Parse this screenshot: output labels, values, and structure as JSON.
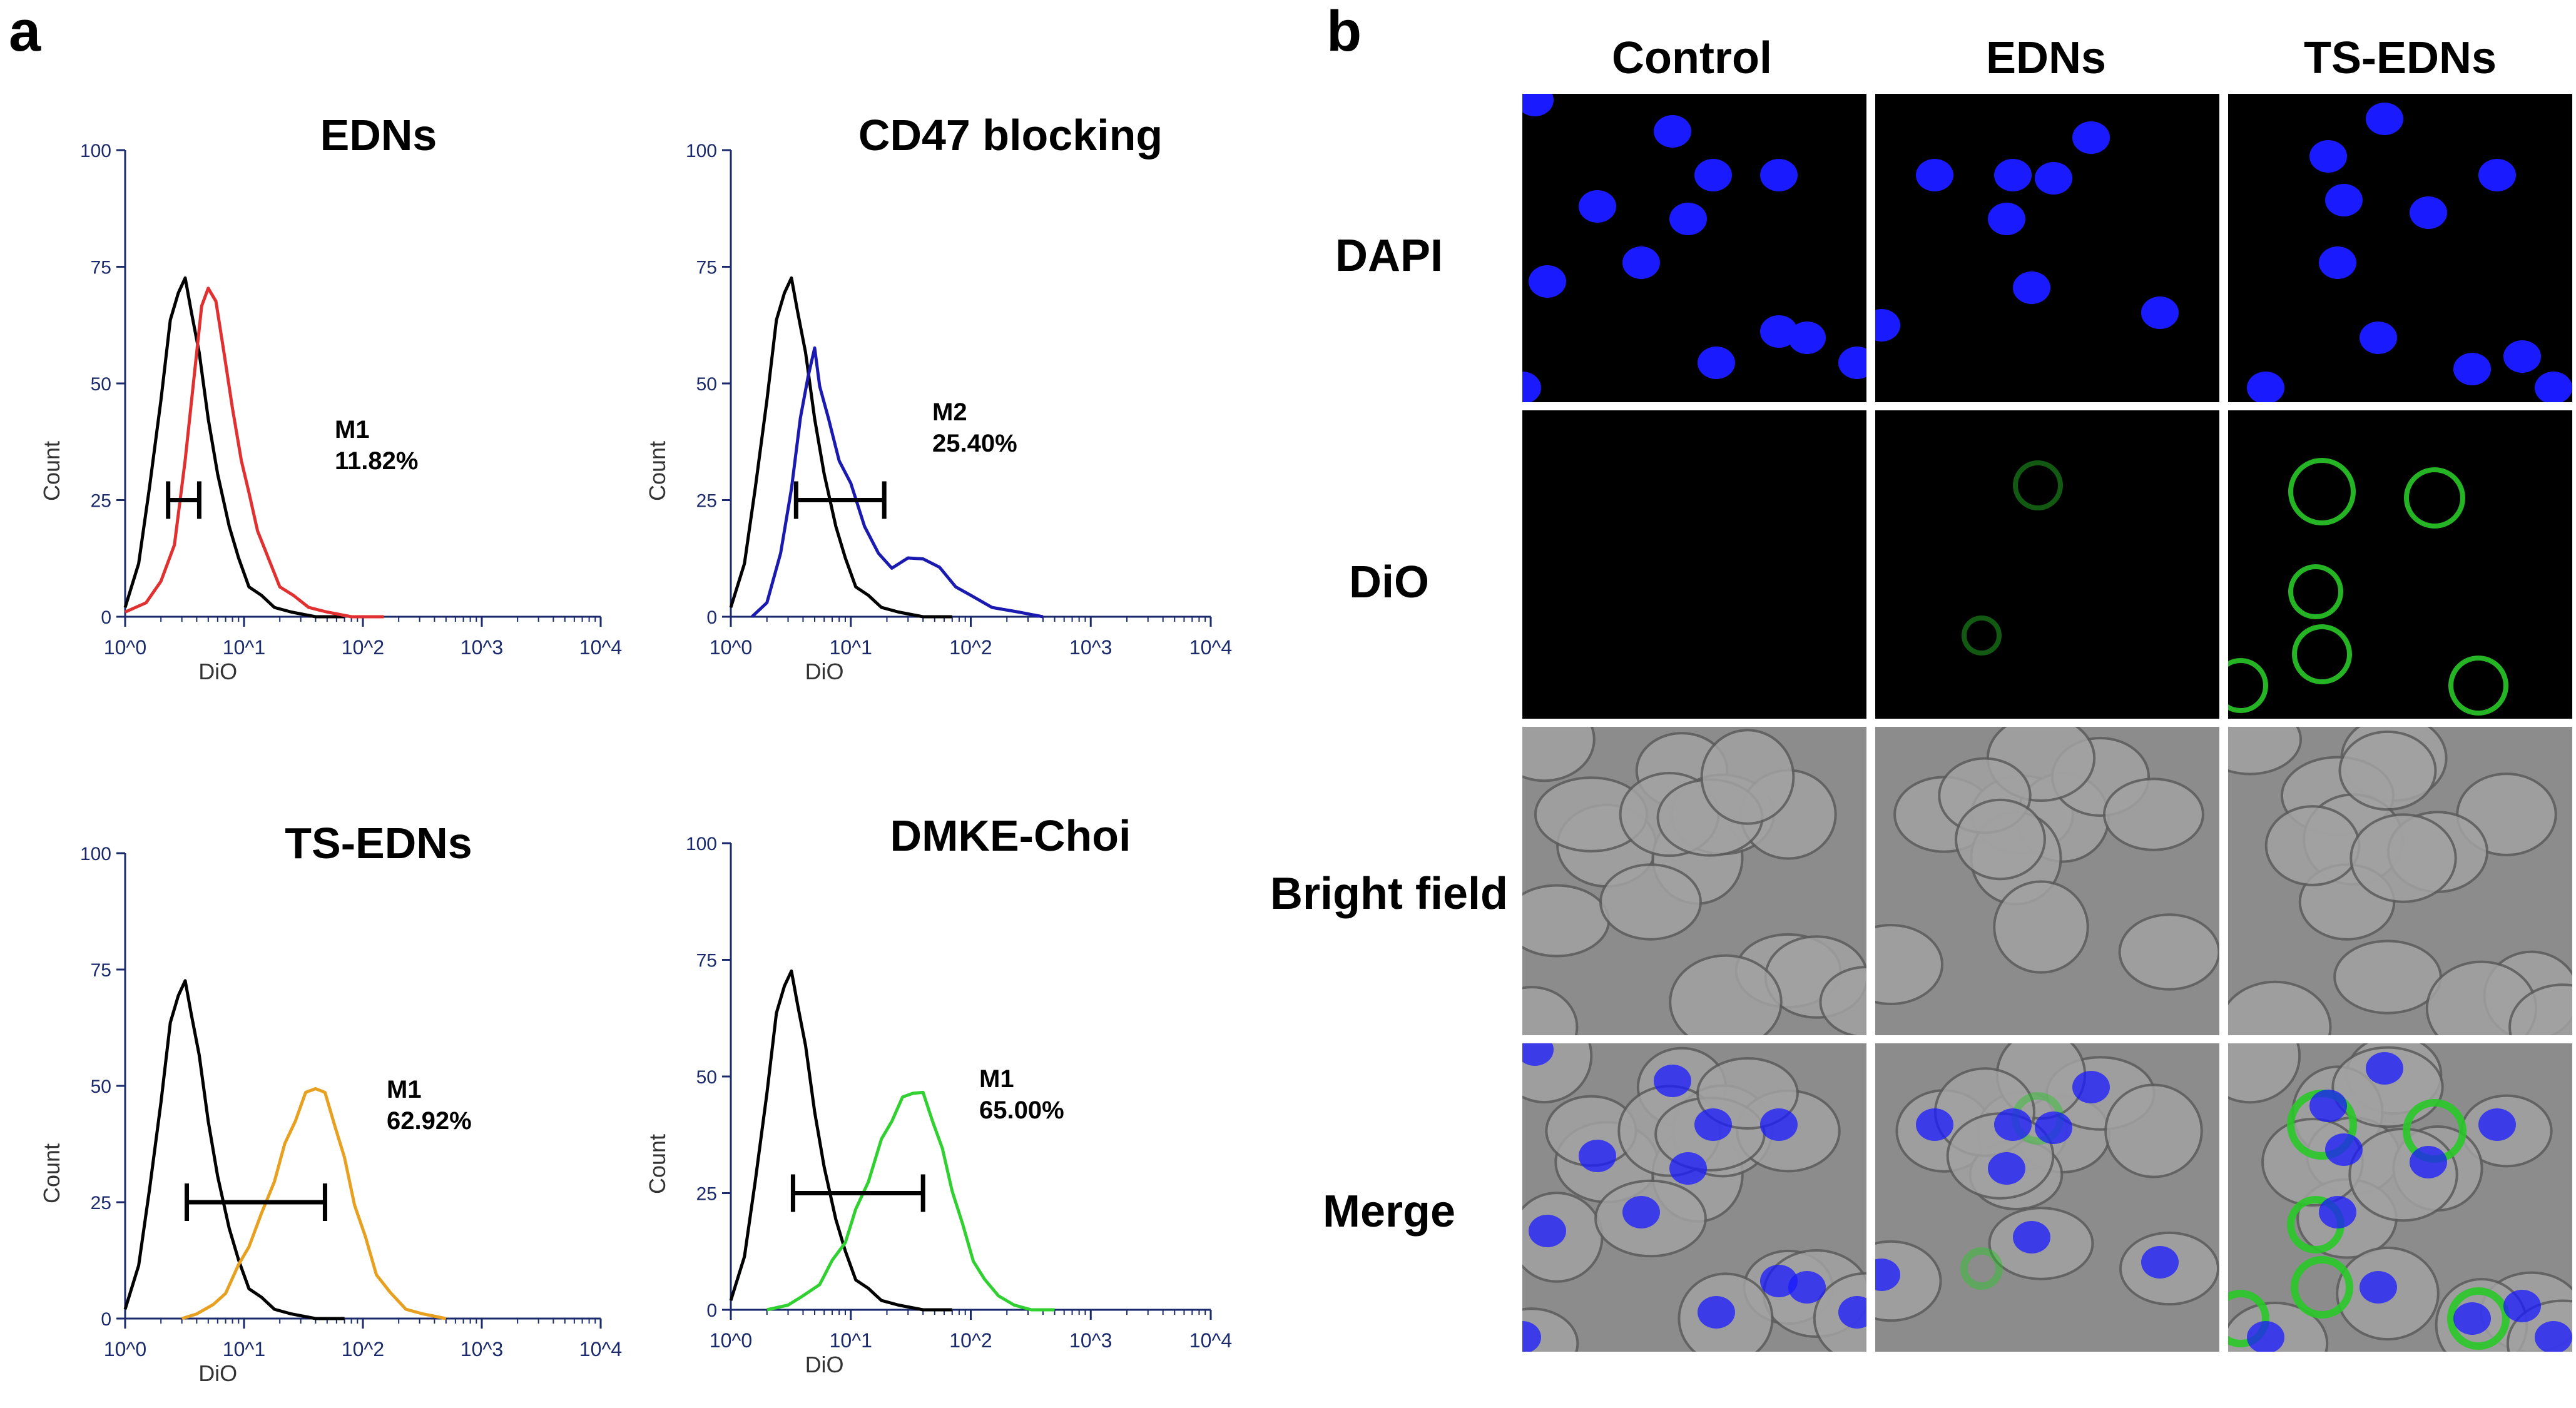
{
  "panels": {
    "a": "a",
    "b": "b"
  },
  "chart_data": [
    {
      "type": "line",
      "title": "EDNs",
      "ylabel": "Count",
      "xlabel": "DiO",
      "xscale": "log",
      "xlim": [
        1,
        10000
      ],
      "ylim": [
        0,
        100
      ],
      "yticks": [
        "0",
        "25",
        "50",
        "75",
        "100"
      ],
      "xticks": [
        "10^0",
        "10^1",
        "10^2",
        "10^3",
        "10^4"
      ],
      "gate": {
        "label": "M1",
        "value": "11.82%",
        "range": [
          2.3,
          4.2
        ]
      },
      "series": [
        {
          "color": "#000000",
          "x": [
            1,
            1.3,
            1.6,
            2,
            2.4,
            2.8,
            3.2,
            3.6,
            4.2,
            5,
            6,
            7.5,
            9,
            11,
            14,
            18,
            25,
            40,
            70
          ],
          "y": [
            2,
            12,
            27,
            47,
            63,
            70,
            72,
            66,
            56,
            43,
            30,
            20,
            12,
            7,
            4,
            2,
            1,
            0,
            0
          ]
        },
        {
          "color": "#e03030",
          "x": [
            1,
            1.5,
            2,
            2.6,
            3.2,
            3.8,
            4.4,
            5,
            5.8,
            6.8,
            8,
            9.5,
            11,
            13,
            16,
            20,
            26,
            35,
            50,
            80,
            150
          ],
          "y": [
            1,
            3,
            7,
            16,
            33,
            52,
            66,
            71,
            67,
            57,
            44,
            34,
            26,
            19,
            12,
            7,
            4,
            2,
            1,
            0,
            0
          ]
        }
      ]
    },
    {
      "type": "line",
      "title": "CD47 blocking",
      "ylabel": "Count",
      "xlabel": "DiO",
      "xscale": "log",
      "xlim": [
        1,
        10000
      ],
      "ylim": [
        0,
        100
      ],
      "yticks": [
        "0",
        "25",
        "50",
        "75",
        "100"
      ],
      "xticks": [
        "10^0",
        "10^1",
        "10^2",
        "10^3",
        "10^4"
      ],
      "gate": {
        "label": "M2",
        "value": "25.40%",
        "range": [
          3.5,
          19
        ]
      },
      "series": [
        {
          "color": "#000000",
          "x": [
            1,
            1.3,
            1.6,
            2,
            2.4,
            2.8,
            3.2,
            3.6,
            4.2,
            5,
            6,
            7.5,
            9,
            11,
            14,
            18,
            25,
            40,
            70
          ],
          "y": [
            2,
            12,
            27,
            47,
            63,
            70,
            72,
            66,
            56,
            43,
            30,
            20,
            12,
            7,
            4,
            2,
            1,
            0,
            0
          ]
        },
        {
          "color": "#1a1ab0",
          "x": [
            1.5,
            2,
            2.6,
            3.2,
            3.8,
            4.4,
            5,
            5.5,
            6.5,
            8,
            10,
            13,
            17,
            22,
            30,
            40,
            55,
            75,
            100,
            150,
            250,
            400
          ],
          "y": [
            0,
            3,
            13,
            28,
            42,
            52,
            57,
            50,
            42,
            34,
            28,
            20,
            13,
            11,
            12,
            13,
            10,
            7,
            4,
            2,
            1,
            0
          ]
        }
      ]
    },
    {
      "type": "line",
      "title": "TS-EDNs",
      "ylabel": "Count",
      "xlabel": "DiO",
      "xscale": "log",
      "xlim": [
        1,
        10000
      ],
      "ylim": [
        0,
        100
      ],
      "yticks": [
        "0",
        "25",
        "50",
        "75",
        "100"
      ],
      "xticks": [
        "10^0",
        "10^1",
        "10^2",
        "10^3",
        "10^4"
      ],
      "gate": {
        "label": "M1",
        "value": "62.92%",
        "range": [
          3.3,
          48
        ]
      },
      "series": [
        {
          "color": "#000000",
          "x": [
            1,
            1.3,
            1.6,
            2,
            2.4,
            2.8,
            3.2,
            3.6,
            4.2,
            5,
            6,
            7.5,
            9,
            11,
            14,
            18,
            25,
            40,
            70
          ],
          "y": [
            2,
            12,
            27,
            47,
            63,
            70,
            72,
            66,
            56,
            43,
            30,
            20,
            12,
            7,
            4,
            2,
            1,
            0,
            0
          ]
        },
        {
          "color": "#e8a020",
          "x": [
            3,
            4,
            5.5,
            7,
            9,
            11,
            14,
            18,
            22,
            27,
            33,
            40,
            48,
            58,
            70,
            85,
            105,
            130,
            170,
            230,
            320,
            500
          ],
          "y": [
            0,
            1,
            3,
            6,
            11,
            16,
            22,
            30,
            37,
            43,
            48,
            50,
            48,
            42,
            34,
            25,
            17,
            10,
            5,
            2,
            1,
            0
          ]
        }
      ]
    },
    {
      "type": "line",
      "title": "DMKE-Choi",
      "ylabel": "Count",
      "xlabel": "DiO",
      "xscale": "log",
      "xlim": [
        1,
        10000
      ],
      "ylim": [
        0,
        100
      ],
      "yticks": [
        "0",
        "25",
        "50",
        "75",
        "100"
      ],
      "xticks": [
        "10^0",
        "10^1",
        "10^2",
        "10^3",
        "10^4"
      ],
      "gate": {
        "label": "M1",
        "value": "65.00%",
        "range": [
          3.3,
          40
        ]
      },
      "series": [
        {
          "color": "#000000",
          "x": [
            1,
            1.3,
            1.6,
            2,
            2.4,
            2.8,
            3.2,
            3.6,
            4.2,
            5,
            6,
            7.5,
            9,
            11,
            14,
            18,
            25,
            40,
            70
          ],
          "y": [
            2,
            12,
            27,
            47,
            63,
            70,
            72,
            66,
            56,
            43,
            30,
            20,
            12,
            7,
            4,
            2,
            1,
            0,
            0
          ]
        },
        {
          "color": "#30d030",
          "x": [
            2,
            3,
            4,
            5.5,
            7,
            9,
            11,
            14,
            18,
            22,
            27,
            33,
            40,
            48,
            58,
            70,
            85,
            105,
            130,
            170,
            230,
            320,
            500
          ],
          "y": [
            0,
            1,
            3,
            6,
            10,
            15,
            21,
            28,
            36,
            41,
            45,
            47,
            46,
            41,
            34,
            26,
            18,
            11,
            6,
            3,
            1,
            0,
            0
          ]
        }
      ]
    }
  ],
  "microscopy": {
    "columns": [
      "Control",
      "EDNs",
      "TS-EDNs"
    ],
    "rows": [
      "DAPI",
      "DiO",
      "Bright field",
      "Merge"
    ]
  },
  "colors": {
    "dapi": "#1a1aff",
    "dio": "#28c828",
    "bright": "#8a8a8a"
  }
}
